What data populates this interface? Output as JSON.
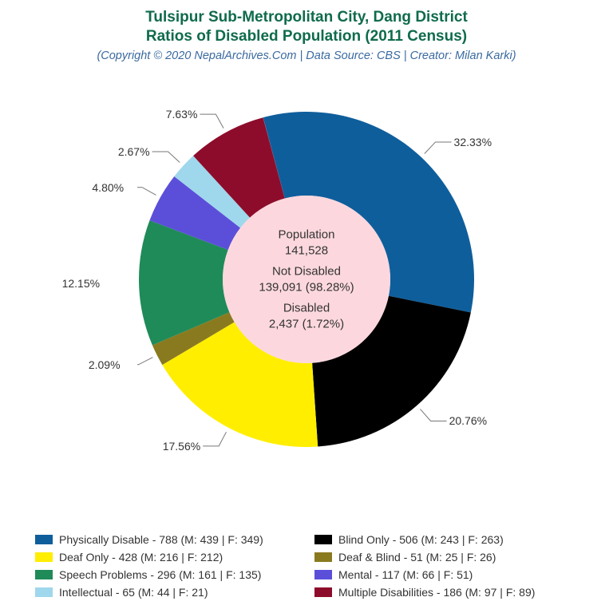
{
  "title": {
    "line1": "Tulsipur Sub-Metropolitan City, Dang District",
    "line2": "Ratios of Disabled Population (2011 Census)",
    "color": "#0f6b4b",
    "fontsize": 19
  },
  "subtitle": {
    "text": "(Copyright © 2020 NepalArchives.Com | Data Source: CBS | Creator: Milan Karki)",
    "color": "#3a6aa0",
    "fontsize": 14.5
  },
  "chart": {
    "type": "donut",
    "outer_radius": 210,
    "inner_radius": 105,
    "background": "#ffffff",
    "center_fill": "#fcd8de",
    "start_angle_deg": -15,
    "slices": [
      {
        "label": "Physically Disable",
        "value": 32.33,
        "pct_label": "32.33%",
        "color": "#0f5e9c",
        "legend": "Physically Disable - 788 (M: 439 | F: 349)"
      },
      {
        "label": "Blind Only",
        "value": 20.76,
        "pct_label": "20.76%",
        "color": "#000000",
        "legend": "Blind Only - 506 (M: 243 | F: 263)"
      },
      {
        "label": "Deaf Only",
        "value": 17.56,
        "pct_label": "17.56%",
        "color": "#ffee00",
        "legend": "Deaf Only - 428 (M: 216 | F: 212)"
      },
      {
        "label": "Deaf & Blind",
        "value": 2.09,
        "pct_label": "2.09%",
        "color": "#8a7a1f",
        "legend": "Deaf & Blind - 51 (M: 25 | F: 26)"
      },
      {
        "label": "Speech Problems",
        "value": 12.15,
        "pct_label": "12.15%",
        "color": "#1f8b59",
        "legend": "Speech Problems - 296 (M: 161 | F: 135)"
      },
      {
        "label": "Mental",
        "value": 4.8,
        "pct_label": "4.80%",
        "color": "#5b4fd9",
        "legend": "Mental - 117 (M: 66 | F: 51)"
      },
      {
        "label": "Intellectual",
        "value": 2.67,
        "pct_label": "2.67%",
        "color": "#9fd7ec",
        "legend": "Intellectual - 65 (M: 44 | F: 21)"
      },
      {
        "label": "Multiple Disabilities",
        "value": 7.63,
        "pct_label": "7.63%",
        "color": "#8e0c2b",
        "legend": "Multiple Disabilities - 186 (M: 97 | F: 89)"
      }
    ],
    "center_texts": {
      "pop_label": "Population",
      "pop_value": "141,528",
      "notdis_label": "Not Disabled",
      "notdis_value": "139,091 (98.28%)",
      "dis_label": "Disabled",
      "dis_value": "2,437 (1.72%)"
    },
    "label_fontsize": 14,
    "center_fontsize": 15,
    "leader_color": "#777777"
  },
  "legend_order": [
    0,
    1,
    2,
    3,
    4,
    5,
    6,
    7
  ],
  "legend_columns_order": [
    [
      0,
      2,
      4,
      6
    ],
    [
      1,
      3,
      5,
      7
    ]
  ]
}
